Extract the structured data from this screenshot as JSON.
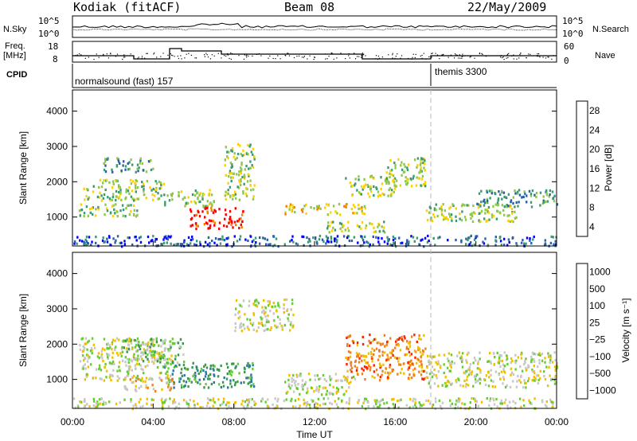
{
  "header": {
    "station": "Kodiak (fitACF)",
    "beam": "Beam 08",
    "date": "22/May/2009"
  },
  "top_panels": {
    "nsky_label": "N.Sky",
    "nsky_ticks": [
      "10^5",
      "10^0"
    ],
    "nsearch_label": "N.Search",
    "nsearch_ticks": [
      "10^5",
      "10^0"
    ],
    "freq_label_1": "Freq.",
    "freq_label_2": "[MHz]",
    "freq_ticks": [
      "18",
      "8"
    ],
    "nave_label": "Nave",
    "nave_ticks": [
      "60",
      "0"
    ],
    "cpid_label": "CPID",
    "cpid_1": "normalsound (fast) 157",
    "cpid_2": "themis 3300"
  },
  "chart_data": [
    {
      "type": "heatmap",
      "name": "power",
      "ylabel": "Slant Range [km]",
      "y_ticks": [
        "1000",
        "2000",
        "3000",
        "4000"
      ],
      "ylim": [
        180,
        4600
      ],
      "colorbar_label": "Power [dB]",
      "colorbar_ticks": [
        "4",
        "8",
        "12",
        "16",
        "20",
        "24",
        "28"
      ],
      "colorbar_colors": [
        "#0000ff",
        "#2860a8",
        "#3a9a70",
        "#8fc74a",
        "#ffd000",
        "#f08000",
        "#ff0000"
      ],
      "bands": [
        {
          "t0": 0.3,
          "t1": 3.5,
          "r0": 1050,
          "r1": 1400,
          "level": 3
        },
        {
          "t0": 0.5,
          "t1": 4.5,
          "r0": 1500,
          "r1": 2100,
          "level": 3
        },
        {
          "t0": 1.5,
          "t1": 4.0,
          "r0": 2300,
          "r1": 2700,
          "level": 2
        },
        {
          "t0": 4.5,
          "t1": 7.0,
          "r0": 1300,
          "r1": 1800,
          "level": 3
        },
        {
          "t0": 5.8,
          "t1": 8.5,
          "r0": 700,
          "r1": 1300,
          "level": 6
        },
        {
          "t0": 7.5,
          "t1": 9.0,
          "r0": 1500,
          "r1": 3100,
          "level": 3
        },
        {
          "t0": 10.5,
          "t1": 14.5,
          "r0": 1100,
          "r1": 1400,
          "level": 4
        },
        {
          "t0": 12.5,
          "t1": 15.5,
          "r0": 600,
          "r1": 900,
          "level": 3
        },
        {
          "t0": 13.5,
          "t1": 16.0,
          "r0": 1600,
          "r1": 2200,
          "level": 3
        },
        {
          "t0": 15.5,
          "t1": 17.5,
          "r0": 1900,
          "r1": 2700,
          "level": 3
        },
        {
          "t0": 17.5,
          "t1": 22.0,
          "r0": 900,
          "r1": 1400,
          "level": 3
        },
        {
          "t0": 20.0,
          "t1": 24.0,
          "r0": 1300,
          "r1": 1800,
          "level": 2
        },
        {
          "t0": 0.0,
          "t1": 24.0,
          "r0": 200,
          "r1": 500,
          "level": 1
        }
      ]
    },
    {
      "type": "heatmap",
      "name": "velocity",
      "ylabel": "Slant Range [km]",
      "y_ticks": [
        "1000",
        "2000",
        "3000",
        "4000"
      ],
      "ylim": [
        180,
        4600
      ],
      "xlabel": "Time UT",
      "x_ticks": [
        "00:00",
        "04:00",
        "08:00",
        "12:00",
        "16:00",
        "20:00",
        "00:00"
      ],
      "xlim": [
        0,
        24
      ],
      "colorbar_label": "Velocity [m s⁻¹]",
      "colorbar_ticks": [
        "1000",
        "500",
        "100",
        "25",
        "−25",
        "−100",
        "−500",
        "−1000"
      ],
      "colorbar_colors": [
        "#1e3cc8",
        "#2878a8",
        "#3a9650",
        "#66cc33",
        "#c8c8c8",
        "#f0c000",
        "#f08020",
        "#ff2000"
      ],
      "bands": [
        {
          "t0": 0.3,
          "t1": 5.0,
          "r0": 1000,
          "r1": 2200,
          "level": 4
        },
        {
          "t0": 2.5,
          "t1": 5.5,
          "r0": 1500,
          "r1": 2200,
          "level": 3
        },
        {
          "t0": 4.5,
          "t1": 9.0,
          "r0": 800,
          "r1": 1500,
          "level": 2
        },
        {
          "t0": 2.5,
          "t1": 5.0,
          "r0": 700,
          "r1": 1100,
          "level": 5
        },
        {
          "t0": 8.0,
          "t1": 11.0,
          "r0": 2400,
          "r1": 3300,
          "level": 4
        },
        {
          "t0": 10.5,
          "t1": 14.0,
          "r0": 600,
          "r1": 1200,
          "level": 4
        },
        {
          "t0": 13.5,
          "t1": 17.5,
          "r0": 1000,
          "r1": 2300,
          "level": 6
        },
        {
          "t0": 17.5,
          "t1": 24.0,
          "r0": 800,
          "r1": 1800,
          "level": 4
        },
        {
          "t0": 0.0,
          "t1": 24.0,
          "r0": 200,
          "r1": 500,
          "level": 4
        }
      ]
    }
  ]
}
